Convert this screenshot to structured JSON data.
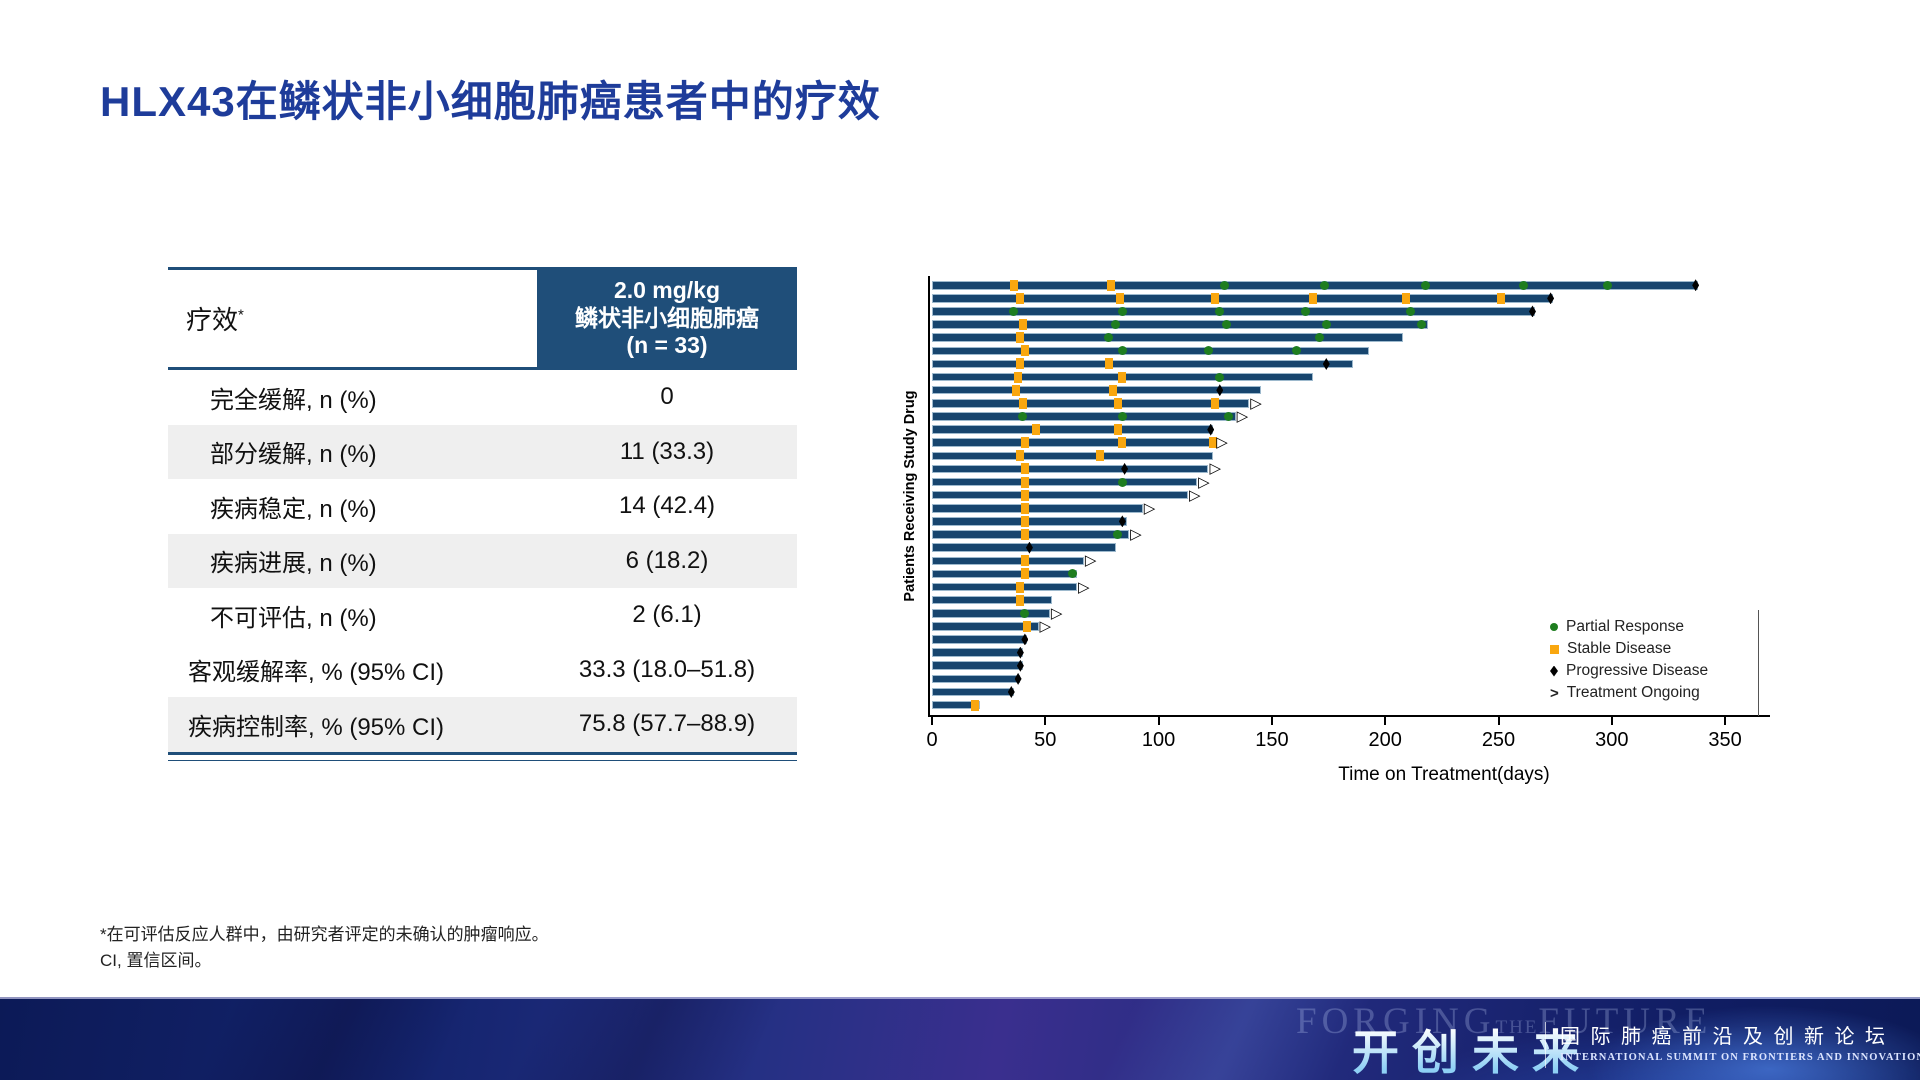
{
  "title": "HLX43在鳞状非小细胞肺癌患者中的疗效",
  "table": {
    "header_label": "疗效",
    "header_sup": "*",
    "col_header_lines": [
      "2.0 mg/kg",
      "鳞状非小细胞肺癌",
      "(n = 33)"
    ],
    "rows": [
      {
        "label": "完全缓解, n (%)",
        "value": "0",
        "indent": true,
        "shaded": false
      },
      {
        "label": "部分缓解, n (%)",
        "value": "11 (33.3)",
        "indent": true,
        "shaded": true
      },
      {
        "label": "疾病稳定, n (%)",
        "value": "14 (42.4)",
        "indent": true,
        "shaded": false
      },
      {
        "label": "疾病进展, n (%)",
        "value": "6 (18.2)",
        "indent": true,
        "shaded": true
      },
      {
        "label": "不可评估, n (%)",
        "value": "2 (6.1)",
        "indent": true,
        "shaded": false
      },
      {
        "label": "客观缓解率, % (95% CI)",
        "value": "33.3 (18.0–51.8)",
        "indent": false,
        "shaded": false
      },
      {
        "label": "疾病控制率, % (95% CI)",
        "value": "75.8 (57.7–88.9)",
        "indent": false,
        "shaded": true
      }
    ]
  },
  "chart_data": {
    "type": "bar",
    "subtype": "swimmer",
    "xlabel": "Time on Treatment(days)",
    "ylabel": "Patients Receiving Study Drug",
    "xlim": [
      0,
      370
    ],
    "xticks": [
      0,
      50,
      100,
      150,
      200,
      250,
      300,
      350
    ],
    "legend": [
      {
        "marker": "pr",
        "label": "Partial Response"
      },
      {
        "marker": "sd",
        "label": "Stable Disease"
      },
      {
        "marker": "pd",
        "label": "Progressive Disease"
      },
      {
        "marker": "ongoing",
        "label": "Treatment Ongoing"
      }
    ],
    "patients": [
      {
        "length_days": 338,
        "ongoing": false,
        "markers": [
          {
            "t": 36,
            "type": "sd"
          },
          {
            "t": 79,
            "type": "sd"
          },
          {
            "t": 129,
            "type": "pr"
          },
          {
            "t": 173,
            "type": "pr"
          },
          {
            "t": 218,
            "type": "pr"
          },
          {
            "t": 261,
            "type": "pr"
          },
          {
            "t": 298,
            "type": "pr"
          },
          {
            "t": 337,
            "type": "pd"
          }
        ]
      },
      {
        "length_days": 274,
        "ongoing": false,
        "markers": [
          {
            "t": 39,
            "type": "sd"
          },
          {
            "t": 83,
            "type": "sd"
          },
          {
            "t": 125,
            "type": "sd"
          },
          {
            "t": 168,
            "type": "sd"
          },
          {
            "t": 209,
            "type": "sd"
          },
          {
            "t": 251,
            "type": "sd"
          },
          {
            "t": 273,
            "type": "pd"
          }
        ]
      },
      {
        "length_days": 266,
        "ongoing": false,
        "markers": [
          {
            "t": 36,
            "type": "pr"
          },
          {
            "t": 84,
            "type": "pr"
          },
          {
            "t": 127,
            "type": "pr"
          },
          {
            "t": 165,
            "type": "pr"
          },
          {
            "t": 211,
            "type": "pr"
          },
          {
            "t": 265,
            "type": "pd"
          }
        ]
      },
      {
        "length_days": 219,
        "ongoing": false,
        "markers": [
          {
            "t": 40,
            "type": "sd"
          },
          {
            "t": 81,
            "type": "pr"
          },
          {
            "t": 130,
            "type": "pr"
          },
          {
            "t": 174,
            "type": "pr"
          },
          {
            "t": 216,
            "type": "pr"
          }
        ]
      },
      {
        "length_days": 208,
        "ongoing": false,
        "markers": [
          {
            "t": 39,
            "type": "sd"
          },
          {
            "t": 78,
            "type": "pr"
          },
          {
            "t": 171,
            "type": "pr"
          }
        ]
      },
      {
        "length_days": 193,
        "ongoing": false,
        "markers": [
          {
            "t": 41,
            "type": "sd"
          },
          {
            "t": 84,
            "type": "pr"
          },
          {
            "t": 122,
            "type": "pr"
          },
          {
            "t": 161,
            "type": "pr"
          }
        ]
      },
      {
        "length_days": 186,
        "ongoing": false,
        "markers": [
          {
            "t": 39,
            "type": "sd"
          },
          {
            "t": 78,
            "type": "sd"
          },
          {
            "t": 174,
            "type": "pd"
          }
        ]
      },
      {
        "length_days": 168,
        "ongoing": false,
        "markers": [
          {
            "t": 38,
            "type": "sd"
          },
          {
            "t": 84,
            "type": "sd"
          },
          {
            "t": 127,
            "type": "pr"
          }
        ]
      },
      {
        "length_days": 145,
        "ongoing": false,
        "markers": [
          {
            "t": 37,
            "type": "sd"
          },
          {
            "t": 80,
            "type": "sd"
          },
          {
            "t": 127,
            "type": "pd"
          }
        ]
      },
      {
        "length_days": 140,
        "ongoing": true,
        "markers": [
          {
            "t": 40,
            "type": "sd"
          },
          {
            "t": 82,
            "type": "sd"
          },
          {
            "t": 125,
            "type": "sd"
          }
        ]
      },
      {
        "length_days": 134,
        "ongoing": true,
        "markers": [
          {
            "t": 40,
            "type": "pr"
          },
          {
            "t": 84,
            "type": "pr"
          },
          {
            "t": 131,
            "type": "pr"
          }
        ]
      },
      {
        "length_days": 124,
        "ongoing": false,
        "markers": [
          {
            "t": 46,
            "type": "sd"
          },
          {
            "t": 82,
            "type": "sd"
          },
          {
            "t": 123,
            "type": "pd"
          }
        ]
      },
      {
        "length_days": 125,
        "ongoing": true,
        "markers": [
          {
            "t": 41,
            "type": "sd"
          },
          {
            "t": 84,
            "type": "sd"
          },
          {
            "t": 124,
            "type": "sd"
          }
        ]
      },
      {
        "length_days": 124,
        "ongoing": false,
        "markers": [
          {
            "t": 39,
            "type": "sd"
          },
          {
            "t": 74,
            "type": "sd"
          }
        ]
      },
      {
        "length_days": 122,
        "ongoing": true,
        "markers": [
          {
            "t": 41,
            "type": "sd"
          },
          {
            "t": 85,
            "type": "pd"
          }
        ]
      },
      {
        "length_days": 117,
        "ongoing": true,
        "markers": [
          {
            "t": 41,
            "type": "sd"
          },
          {
            "t": 84,
            "type": "pr"
          }
        ]
      },
      {
        "length_days": 113,
        "ongoing": true,
        "markers": [
          {
            "t": 41,
            "type": "sd"
          }
        ]
      },
      {
        "length_days": 93,
        "ongoing": true,
        "markers": [
          {
            "t": 41,
            "type": "sd"
          }
        ]
      },
      {
        "length_days": 86,
        "ongoing": false,
        "markers": [
          {
            "t": 41,
            "type": "sd"
          },
          {
            "t": 84,
            "type": "pd"
          }
        ]
      },
      {
        "length_days": 87,
        "ongoing": true,
        "markers": [
          {
            "t": 41,
            "type": "sd"
          },
          {
            "t": 82,
            "type": "pr"
          }
        ]
      },
      {
        "length_days": 81,
        "ongoing": false,
        "markers": [
          {
            "t": 43,
            "type": "pd"
          }
        ]
      },
      {
        "length_days": 67,
        "ongoing": true,
        "markers": [
          {
            "t": 41,
            "type": "sd"
          }
        ]
      },
      {
        "length_days": 64,
        "ongoing": false,
        "markers": [
          {
            "t": 41,
            "type": "sd"
          },
          {
            "t": 62,
            "type": "pr"
          }
        ]
      },
      {
        "length_days": 64,
        "ongoing": true,
        "markers": [
          {
            "t": 39,
            "type": "sd"
          }
        ]
      },
      {
        "length_days": 53,
        "ongoing": false,
        "markers": [
          {
            "t": 39,
            "type": "sd"
          }
        ]
      },
      {
        "length_days": 52,
        "ongoing": true,
        "markers": [
          {
            "t": 41,
            "type": "pr"
          }
        ]
      },
      {
        "length_days": 47,
        "ongoing": true,
        "markers": [
          {
            "t": 42,
            "type": "sd"
          }
        ]
      },
      {
        "length_days": 42,
        "ongoing": false,
        "markers": [
          {
            "t": 41,
            "type": "pd"
          }
        ]
      },
      {
        "length_days": 40,
        "ongoing": false,
        "markers": [
          {
            "t": 39,
            "type": "pd"
          }
        ]
      },
      {
        "length_days": 40,
        "ongoing": false,
        "markers": [
          {
            "t": 39,
            "type": "pd"
          }
        ]
      },
      {
        "length_days": 39,
        "ongoing": false,
        "markers": [
          {
            "t": 38,
            "type": "pd"
          }
        ]
      },
      {
        "length_days": 36,
        "ongoing": false,
        "markers": [
          {
            "t": 35,
            "type": "pd"
          }
        ]
      },
      {
        "length_days": 21,
        "ongoing": false,
        "markers": [
          {
            "t": 19,
            "type": "sd"
          }
        ]
      }
    ]
  },
  "footnotes": [
    "*在可评估反应人群中，由研究者评定的未确认的肿瘤响应。",
    "CI, 置信区间。"
  ],
  "footer": {
    "watermark_1": "FORGING",
    "watermark_the": "THE",
    "watermark_2": "FUTURE",
    "cn_brand": "开创未来",
    "summit_cn": "国际肺癌前沿及创新论坛",
    "summit_en": "INTERNATIONAL SUMMIT ON FRONTIERS AND INNOVATIONS IN LUNG CANCER"
  },
  "colors": {
    "title_blue": "#1e3c9a",
    "header_navy": "#1F4E79",
    "bar_navy": "#17456e",
    "sd_orange": "#f9a70f",
    "pr_green": "#1e7d1f",
    "pd_black": "#000000",
    "row_shade": "#efefef"
  }
}
